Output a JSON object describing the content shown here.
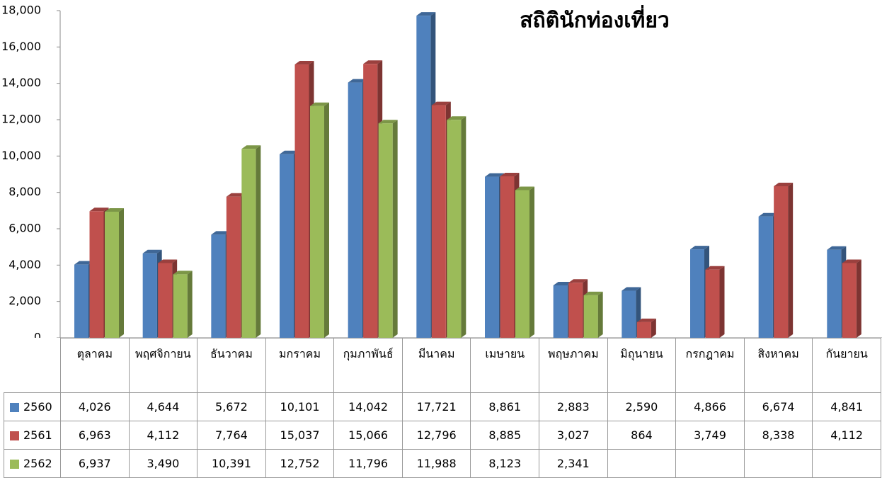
{
  "chart_data": {
    "type": "bar",
    "title": "สถิตินักท่องเที่ยว",
    "categories": [
      "ตุลาคม",
      "พฤศจิกายน",
      "ธันวาคม",
      "มกราคม",
      "กุมภาพันธ์",
      "มีนาคม",
      "เมษายน",
      "พฤษภาคม",
      "มิถุนายน",
      "กรกฎาคม",
      "สิงหาคม",
      "กันยายน"
    ],
    "series": [
      {
        "name": "2560",
        "color": "#4f81bd",
        "values": [
          4026,
          4644,
          5672,
          10101,
          14042,
          17721,
          8861,
          2883,
          2590,
          4866,
          6674,
          4841
        ],
        "value_labels": [
          "4,026",
          "4,644",
          "5,672",
          "10,101",
          "14,042",
          "17,721",
          "8,861",
          "2,883",
          "2,590",
          "4,866",
          "6,674",
          "4,841"
        ]
      },
      {
        "name": "2561",
        "color": "#c0504d",
        "values": [
          6963,
          4112,
          7764,
          15037,
          15066,
          12796,
          8885,
          3027,
          864,
          3749,
          8338,
          4112
        ],
        "value_labels": [
          "6,963",
          "4,112",
          "7,764",
          "15,037",
          "15,066",
          "12,796",
          "8,885",
          "3,027",
          "864",
          "3,749",
          "8,338",
          "4,112"
        ]
      },
      {
        "name": "2562",
        "color": "#9bbb59",
        "values": [
          6937,
          3490,
          10391,
          12752,
          11796,
          11988,
          8123,
          2341,
          null,
          null,
          null,
          null
        ],
        "value_labels": [
          "6,937",
          "3,490",
          "10,391",
          "12,752",
          "11,796",
          "11,988",
          "8,123",
          "2,341",
          null,
          null,
          null,
          null
        ]
      }
    ],
    "ylim": [
      0,
      18000
    ],
    "yticks": [
      0,
      {
        "value": 2000,
        "label": "2,000"
      },
      {
        "value": 4000,
        "label": "4,000"
      },
      {
        "value": 6000,
        "label": "6,000"
      },
      {
        "value": 8000,
        "label": "8,000"
      },
      {
        "value": 10000,
        "label": "10,000"
      },
      {
        "value": 12000,
        "label": "12,000"
      },
      {
        "value": 14000,
        "label": "14,000"
      },
      {
        "value": 16000,
        "label": "16,000"
      },
      {
        "value": 18000,
        "label": "18,000"
      }
    ],
    "grid": false
  }
}
